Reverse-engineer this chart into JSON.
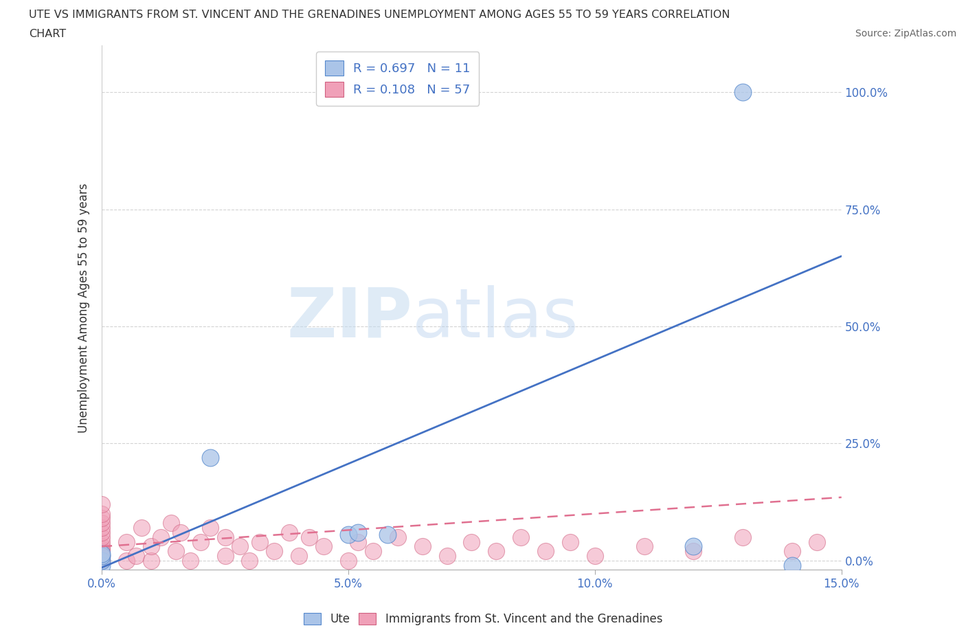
{
  "title_line1": "UTE VS IMMIGRANTS FROM ST. VINCENT AND THE GRENADINES UNEMPLOYMENT AMONG AGES 55 TO 59 YEARS CORRELATION",
  "title_line2": "CHART",
  "source": "Source: ZipAtlas.com",
  "ylabel": "Unemployment Among Ages 55 to 59 years",
  "xlim": [
    0.0,
    0.15
  ],
  "ylim": [
    -0.02,
    1.1
  ],
  "yticks": [
    0.0,
    0.25,
    0.5,
    0.75,
    1.0
  ],
  "ytick_labels": [
    "0.0%",
    "25.0%",
    "50.0%",
    "75.0%",
    "100.0%"
  ],
  "xticks": [
    0.0,
    0.05,
    0.1,
    0.15
  ],
  "xtick_labels": [
    "0.0%",
    "5.0%",
    "10.0%",
    "15.0%"
  ],
  "ute_color": "#aac4e8",
  "ute_edge_color": "#5588cc",
  "pink_color": "#f0a0b8",
  "pink_edge_color": "#d06080",
  "ute_R": 0.697,
  "ute_N": 11,
  "pink_R": 0.108,
  "pink_N": 57,
  "blue_line_color": "#4472c4",
  "pink_line_color": "#e07090",
  "watermark_zip": "ZIP",
  "watermark_atlas": "atlas",
  "legend_label_ute": "Ute",
  "legend_label_pink": "Immigrants from St. Vincent and the Grenadines",
  "blue_line_x0": 0.0,
  "blue_line_y0": -0.015,
  "blue_line_x1": 0.15,
  "blue_line_y1": 0.65,
  "pink_line_x0": 0.0,
  "pink_line_y0": 0.03,
  "pink_line_x1": 0.15,
  "pink_line_y1": 0.135,
  "ute_x": [
    0.0,
    0.0,
    0.0,
    0.0,
    0.022,
    0.05,
    0.052,
    0.058,
    0.12,
    0.13,
    0.14
  ],
  "ute_y": [
    -0.01,
    0.0,
    0.01,
    0.015,
    0.22,
    0.055,
    0.06,
    0.055,
    0.03,
    1.0,
    -0.01
  ],
  "pink_x": [
    0.0,
    0.0,
    0.0,
    0.0,
    0.0,
    0.0,
    0.0,
    0.0,
    0.0,
    0.0,
    0.0,
    0.0,
    0.0,
    0.0,
    0.0,
    0.0,
    0.0,
    0.005,
    0.005,
    0.007,
    0.008,
    0.01,
    0.01,
    0.012,
    0.014,
    0.015,
    0.016,
    0.018,
    0.02,
    0.022,
    0.025,
    0.025,
    0.028,
    0.03,
    0.032,
    0.035,
    0.038,
    0.04,
    0.042,
    0.045,
    0.05,
    0.052,
    0.055,
    0.06,
    0.065,
    0.07,
    0.075,
    0.08,
    0.085,
    0.09,
    0.095,
    0.1,
    0.11,
    0.12,
    0.13,
    0.14,
    0.145
  ],
  "pink_y": [
    0.0,
    0.0,
    0.0,
    0.005,
    0.01,
    0.01,
    0.02,
    0.025,
    0.03,
    0.04,
    0.05,
    0.06,
    0.07,
    0.08,
    0.09,
    0.1,
    0.12,
    0.0,
    0.04,
    0.01,
    0.07,
    0.0,
    0.03,
    0.05,
    0.08,
    0.02,
    0.06,
    0.0,
    0.04,
    0.07,
    0.01,
    0.05,
    0.03,
    0.0,
    0.04,
    0.02,
    0.06,
    0.01,
    0.05,
    0.03,
    0.0,
    0.04,
    0.02,
    0.05,
    0.03,
    0.01,
    0.04,
    0.02,
    0.05,
    0.02,
    0.04,
    0.01,
    0.03,
    0.02,
    0.05,
    0.02,
    0.04
  ],
  "background_color": "#ffffff",
  "grid_color": "#c8c8c8",
  "tick_color": "#4472c4"
}
